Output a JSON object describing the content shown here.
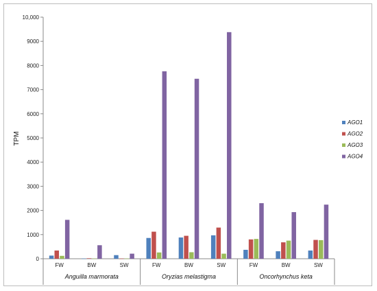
{
  "chart_data": {
    "type": "bar",
    "ylabel": "TPM",
    "ylim": [
      0,
      10000
    ],
    "yticks": [
      0,
      1000,
      2000,
      3000,
      4000,
      5000,
      6000,
      7000,
      8000,
      9000,
      "10,000"
    ],
    "groups": [
      "Anguilla marmorata",
      "Oryzias  melastigma",
      "Oncorhynchus  keta"
    ],
    "categories": [
      "FW",
      "BW",
      "SW",
      "FW",
      "BW",
      "SW",
      "FW",
      "BW",
      "SW"
    ],
    "series": [
      {
        "name": "AGO1",
        "color": "#4f81bd",
        "values": [
          130,
          10,
          150,
          860,
          880,
          970,
          370,
          310,
          340
        ]
      },
      {
        "name": "AGO2",
        "color": "#c0504d",
        "values": [
          340,
          20,
          10,
          1120,
          950,
          1290,
          800,
          680,
          780
        ]
      },
      {
        "name": "AGO3",
        "color": "#9bbb59",
        "values": [
          120,
          10,
          10,
          260,
          270,
          210,
          820,
          750,
          770
        ]
      },
      {
        "name": "AGO4",
        "color": "#8064a2",
        "values": [
          1610,
          560,
          210,
          7760,
          7450,
          9380,
          2300,
          1930,
          2240
        ]
      }
    ],
    "legend": "right",
    "grid": false
  }
}
